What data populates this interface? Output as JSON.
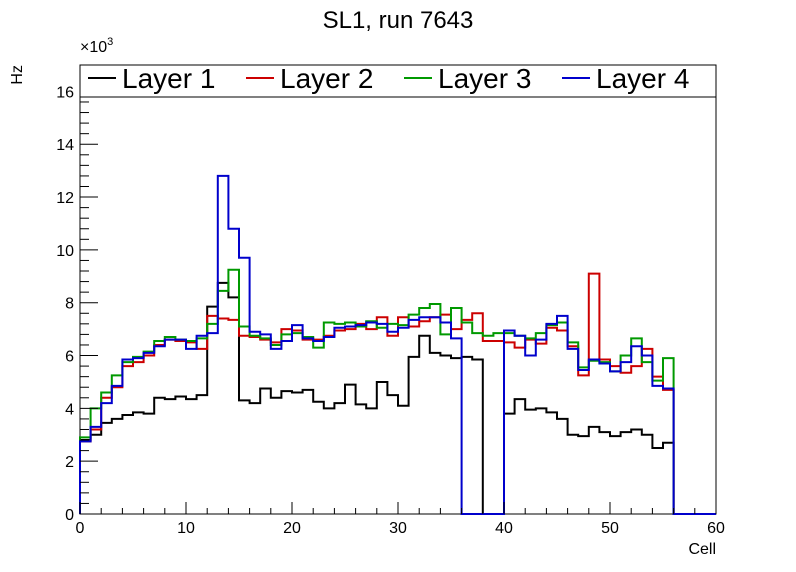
{
  "chart_data": {
    "type": "histogram-step",
    "title": "SL1, run 7643",
    "xlabel": "Cell",
    "ylabel": "Hz",
    "y_multiplier_label": "×10",
    "y_multiplier_exp": "3",
    "xlim": [
      0,
      60
    ],
    "ylim": [
      0,
      17
    ],
    "x_ticks": [
      0,
      10,
      20,
      30,
      40,
      50,
      60
    ],
    "y_ticks": [
      0,
      2,
      4,
      6,
      8,
      10,
      12,
      14,
      16
    ],
    "y_unit_scale": 1000,
    "bin_edges_start": 0,
    "bin_width": 1,
    "series": [
      {
        "name": "Layer 1",
        "color": "#000000",
        "values": [
          2.8,
          3.0,
          3.45,
          3.6,
          3.75,
          3.85,
          3.8,
          4.4,
          4.35,
          4.45,
          4.35,
          4.5,
          7.85,
          8.75,
          8.2,
          4.3,
          4.2,
          4.75,
          4.4,
          4.65,
          4.6,
          4.7,
          4.25,
          4.0,
          4.2,
          4.9,
          4.15,
          4.0,
          5.0,
          4.5,
          4.1,
          5.95,
          6.75,
          6.1,
          6.0,
          5.9,
          5.95,
          5.85,
          0,
          0,
          3.8,
          4.35,
          3.95,
          4.0,
          3.85,
          3.6,
          3.0,
          2.95,
          3.3,
          3.1,
          2.95,
          3.1,
          3.2,
          3.0,
          2.5,
          2.7,
          0,
          0,
          0,
          0
        ]
      },
      {
        "name": "Layer 2",
        "color": "#cc0000",
        "values": [
          2.75,
          3.2,
          4.4,
          4.8,
          5.6,
          5.75,
          6.0,
          6.4,
          6.6,
          6.55,
          6.5,
          6.25,
          7.5,
          7.4,
          7.35,
          6.75,
          6.7,
          6.6,
          6.5,
          7.0,
          6.95,
          6.6,
          6.6,
          6.75,
          6.95,
          7.0,
          7.2,
          7.0,
          7.45,
          6.75,
          7.45,
          7.1,
          7.3,
          7.45,
          7.55,
          7.0,
          7.35,
          7.6,
          6.55,
          6.55,
          6.5,
          6.3,
          6.6,
          6.45,
          7.05,
          6.95,
          6.35,
          5.25,
          9.1,
          5.85,
          5.6,
          5.35,
          5.6,
          6.25,
          5.2,
          4.7,
          0,
          0,
          0,
          0
        ]
      },
      {
        "name": "Layer 3",
        "color": "#009900",
        "values": [
          2.9,
          4.0,
          4.6,
          5.25,
          5.75,
          5.95,
          6.15,
          6.55,
          6.7,
          6.6,
          6.55,
          6.65,
          7.2,
          8.45,
          9.25,
          7.1,
          6.75,
          6.65,
          6.4,
          6.8,
          6.85,
          6.7,
          6.3,
          7.25,
          7.2,
          7.25,
          7.1,
          7.3,
          7.05,
          7.2,
          7.15,
          7.55,
          7.8,
          7.95,
          6.8,
          7.8,
          7.25,
          6.85,
          6.75,
          6.85,
          6.85,
          6.75,
          6.65,
          6.85,
          7.15,
          7.25,
          6.5,
          5.55,
          5.8,
          5.75,
          5.4,
          6.0,
          6.65,
          5.75,
          5.05,
          5.9,
          0,
          0,
          0,
          0
        ]
      },
      {
        "name": "Layer 4",
        "color": "#0000cc",
        "values": [
          2.75,
          3.3,
          4.2,
          4.85,
          5.85,
          5.9,
          6.1,
          6.35,
          6.6,
          6.6,
          6.25,
          6.75,
          6.85,
          12.8,
          10.8,
          9.7,
          6.9,
          6.8,
          6.25,
          6.55,
          7.15,
          6.65,
          6.55,
          6.7,
          7.05,
          7.1,
          7.15,
          7.25,
          7.2,
          6.9,
          7.05,
          7.35,
          7.45,
          7.45,
          7.25,
          6.65,
          0,
          0,
          0,
          0,
          6.95,
          6.75,
          6.0,
          6.6,
          7.2,
          7.5,
          6.25,
          5.45,
          5.85,
          5.7,
          5.4,
          5.75,
          6.35,
          6.0,
          4.85,
          4.75,
          0,
          0,
          0,
          0
        ]
      }
    ],
    "legend_placement": "top, full width",
    "grid": false
  }
}
